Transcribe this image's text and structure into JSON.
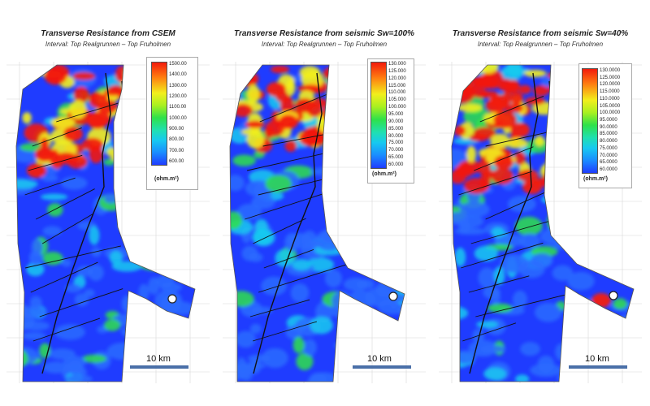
{
  "colors": {
    "low": "#1f3cff",
    "cyan": "#17c9f0",
    "green": "#2ee14a",
    "yellow": "#f2ef1c",
    "red": "#f21a0c",
    "fault": "#111111",
    "scale_bar": "#4a6fa8"
  },
  "panels": [
    {
      "title": "Transverse Resistance from CSEM",
      "subtitle": "Interval: Top Realgrunnen – Top Fruholmen",
      "colorbar_ticks": [
        "1500.00",
        "1400.00",
        "1300.00",
        "1200.00",
        "1100.00",
        "1000.00",
        "900.00",
        "800.00",
        "700.00",
        "600.00"
      ],
      "units": "(ohm.m²)",
      "scale_label": "10 km"
    },
    {
      "title": "Transverse Resistance from seismic Sw=100%",
      "subtitle": "Interval: Top Realgrunnen – Top Fruholmen",
      "colorbar_ticks": [
        "130.000",
        "125.000",
        "120.000",
        "115.000",
        "110.000",
        "105.000",
        "100.000",
        "95.000",
        "90.000",
        "85.000",
        "80.000",
        "75.000",
        "70.000",
        "65.000",
        "60.000"
      ],
      "units": "(ohm.m²)",
      "scale_label": "10 km"
    },
    {
      "title": "Transverse Resistance from seismic Sw=40%",
      "subtitle": "Interval: Top Realgrunnen – Top Fruholmen",
      "colorbar_ticks": [
        "130.0000",
        "125.0000",
        "120.0000",
        "115.0000",
        "110.0000",
        "105.0000",
        "100.0000",
        "95.0000",
        "90.0000",
        "85.0000",
        "80.0000",
        "75.0000",
        "70.0000",
        "65.0000",
        "60.0000"
      ],
      "units": "(ohm.m²)",
      "scale_label": "10 km"
    }
  ]
}
